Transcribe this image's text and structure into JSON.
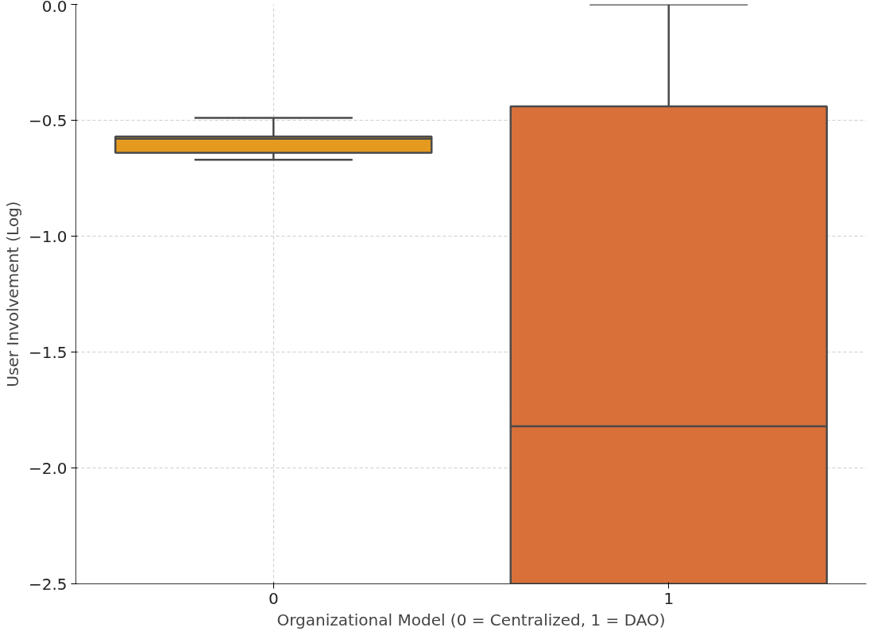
{
  "chart_data": {
    "type": "box",
    "xlabel": "Organizational Model (0 = Centralized, 1 = DAO)",
    "ylabel": "User Involvement (Log)",
    "categories": [
      "0",
      "1"
    ],
    "colors": [
      "#e49a1f",
      "#d9703a"
    ],
    "boxes": [
      {
        "low": -0.67,
        "q1": -0.64,
        "median": -0.58,
        "q3": -0.57,
        "high": -0.49
      },
      {
        "low": -2.5,
        "q1": -2.5,
        "median": -1.82,
        "q3": -0.44,
        "high": 0.0
      }
    ],
    "ylim": [
      -2.5,
      0.0
    ],
    "yticks": [
      {
        "value": -2.5,
        "label": "−2.5"
      },
      {
        "value": -2.0,
        "label": "−2.0"
      },
      {
        "value": -1.5,
        "label": "−1.5"
      },
      {
        "value": -1.0,
        "label": "−1.0"
      },
      {
        "value": -0.5,
        "label": "−0.5"
      },
      {
        "value": 0.0,
        "label": "0.0"
      }
    ],
    "grid": true
  }
}
